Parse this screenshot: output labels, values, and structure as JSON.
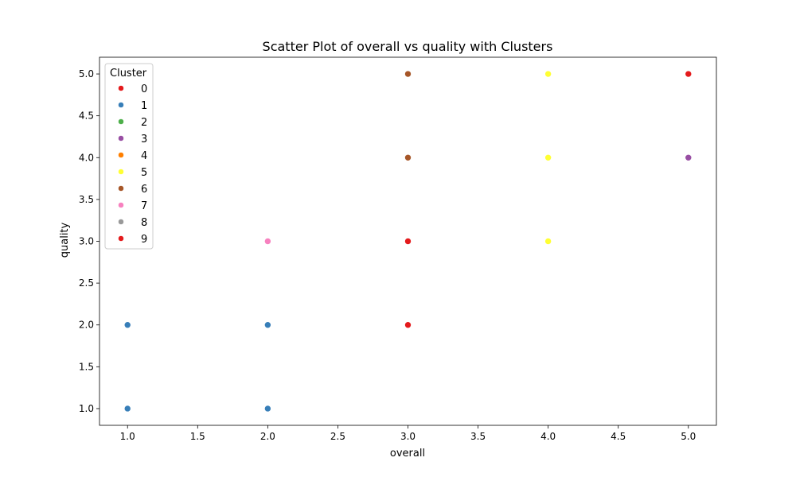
{
  "chart_data": {
    "type": "scatter",
    "title": "Scatter Plot of overall vs quality with Clusters",
    "xlabel": "overall",
    "ylabel": "quality",
    "xlim": [
      0.8,
      5.2
    ],
    "ylim": [
      0.8,
      5.2
    ],
    "xticks": [
      1.0,
      1.5,
      2.0,
      2.5,
      3.0,
      3.5,
      4.0,
      4.5,
      5.0
    ],
    "yticks": [
      1.0,
      1.5,
      2.0,
      2.5,
      3.0,
      3.5,
      4.0,
      4.5,
      5.0
    ],
    "xtick_labels": [
      "1.0",
      "1.5",
      "2.0",
      "2.5",
      "3.0",
      "3.5",
      "4.0",
      "4.5",
      "5.0"
    ],
    "ytick_labels": [
      "1.0",
      "1.5",
      "2.0",
      "2.5",
      "3.0",
      "3.5",
      "4.0",
      "4.5",
      "5.0"
    ],
    "grid": false,
    "legend": {
      "title": "Cluster",
      "placement": "upper-left",
      "entries": [
        {
          "label": "0",
          "color": "#e41a1c"
        },
        {
          "label": "1",
          "color": "#377eb8"
        },
        {
          "label": "2",
          "color": "#4daf4a"
        },
        {
          "label": "3",
          "color": "#984ea3"
        },
        {
          "label": "4",
          "color": "#ff7f00"
        },
        {
          "label": "5",
          "color": "#ffff33"
        },
        {
          "label": "6",
          "color": "#a65628"
        },
        {
          "label": "7",
          "color": "#f781bf"
        },
        {
          "label": "8",
          "color": "#999999"
        },
        {
          "label": "9",
          "color": "#e41a1c"
        }
      ]
    },
    "series": [
      {
        "name": "0",
        "color": "#e41a1c",
        "points": [
          [
            3,
            2
          ],
          [
            3,
            3
          ],
          [
            5,
            5
          ]
        ]
      },
      {
        "name": "1",
        "color": "#377eb8",
        "points": [
          [
            1,
            1
          ],
          [
            1,
            2
          ],
          [
            2,
            1
          ],
          [
            2,
            2
          ]
        ]
      },
      {
        "name": "3",
        "color": "#984ea3",
        "points": [
          [
            5,
            4
          ]
        ]
      },
      {
        "name": "5",
        "color": "#ffff33",
        "points": [
          [
            4,
            3
          ],
          [
            4,
            4
          ],
          [
            4,
            5
          ]
        ]
      },
      {
        "name": "6",
        "color": "#a65628",
        "points": [
          [
            3,
            4
          ],
          [
            3,
            5
          ]
        ]
      },
      {
        "name": "7",
        "color": "#f781bf",
        "points": [
          [
            2,
            3
          ]
        ]
      }
    ]
  }
}
